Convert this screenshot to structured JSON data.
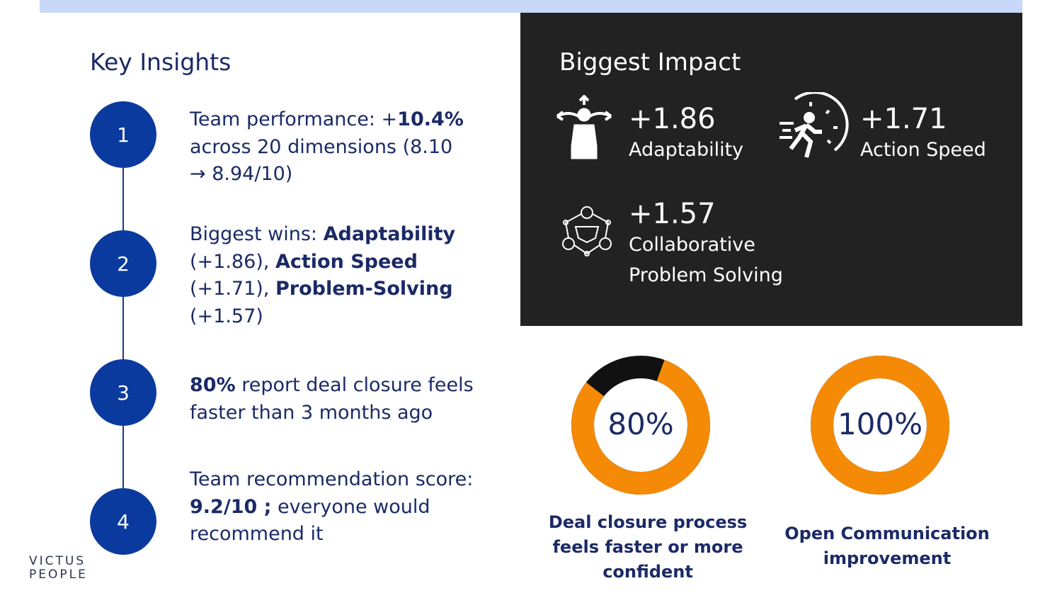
{
  "title": "Key Insights",
  "insights": [
    {
      "num": "1",
      "a": "Team performance: +",
      "b": "10.4%",
      "c": " across 20 dimensions (8.10 → 8.94/10)"
    },
    {
      "num": "2",
      "a": "Biggest wins: ",
      "b1": "Adaptability",
      "c1": " (+1.86), ",
      "b2": "Action Speed",
      "c2": " (+1.71), ",
      "b3": "Problem-Solving",
      "c3": " (+1.57)"
    },
    {
      "num": "3",
      "b": "80%",
      "c": " report deal closure feels faster than 3 months ago"
    },
    {
      "num": "4",
      "a": "Team recommendation score: ",
      "b": "9.2/10 ;",
      "c": " everyone would recommend it"
    }
  ],
  "impact": {
    "title": "Biggest Impact",
    "items": [
      {
        "value": "+1.86",
        "label": "Adaptability",
        "icon": "adaptability-person-arrows-icon"
      },
      {
        "value": "+1.71",
        "label": "Action Speed",
        "icon": "running-stopwatch-icon"
      },
      {
        "value": "+1.57",
        "label": "Collaborative Problem Solving",
        "icon": "handshake-network-icon"
      }
    ]
  },
  "donuts": [
    {
      "label": "80%",
      "percent": 80,
      "caption": "Deal closure process feels faster or more confident"
    },
    {
      "label": "100%",
      "percent": 100,
      "caption": "Open Communication improvement"
    }
  ],
  "colors": {
    "accent": "#f58a07",
    "navy": "#0b3a9e",
    "panel": "#222222"
  },
  "logo": {
    "line1": "VICTUS",
    "line2": "PEOPLE"
  }
}
